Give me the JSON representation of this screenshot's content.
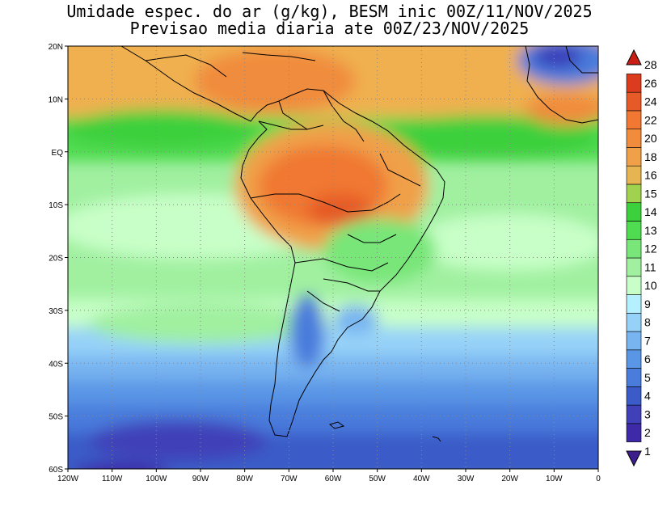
{
  "title_line1": "Umidade espec. do ar (g/kg), BESM inic 00Z/11/NOV/2025",
  "title_line2": "Previsao media diaria ate 00Z/23/NOV/2025",
  "map": {
    "lon_range": [
      -120,
      0
    ],
    "lat_range": [
      -60,
      20
    ],
    "lat_labels": [
      "20N",
      "10N",
      "EQ",
      "10S",
      "20S",
      "30S",
      "40S",
      "50S",
      "60S"
    ],
    "lon_labels": [
      "120W",
      "110W",
      "100W",
      "90W",
      "80W",
      "70W",
      "60W",
      "50W",
      "40W",
      "30W",
      "20W",
      "10W",
      "0"
    ],
    "gridlines": "dotted"
  },
  "colorbar": {
    "levels": [
      "1",
      "2",
      "3",
      "4",
      "5",
      "6",
      "7",
      "8",
      "9",
      "10",
      "11",
      "12",
      "13",
      "14",
      "15",
      "16",
      "18",
      "20",
      "22",
      "24",
      "26",
      "28"
    ],
    "colors": [
      "#3c1e8c",
      "#3e2aa8",
      "#4040b8",
      "#3a5bc8",
      "#4a7cdc",
      "#5a96e6",
      "#78b4f0",
      "#96d2f8",
      "#b4f0ff",
      "#c8ffc8",
      "#a0f0a0",
      "#78e678",
      "#50dc50",
      "#3cd03c",
      "#a0d250",
      "#e6b450",
      "#f0a048",
      "#f08c3c",
      "#f07832",
      "#e65a28",
      "#dc3c1e",
      "#c81e14"
    ],
    "units": "g/kg"
  }
}
